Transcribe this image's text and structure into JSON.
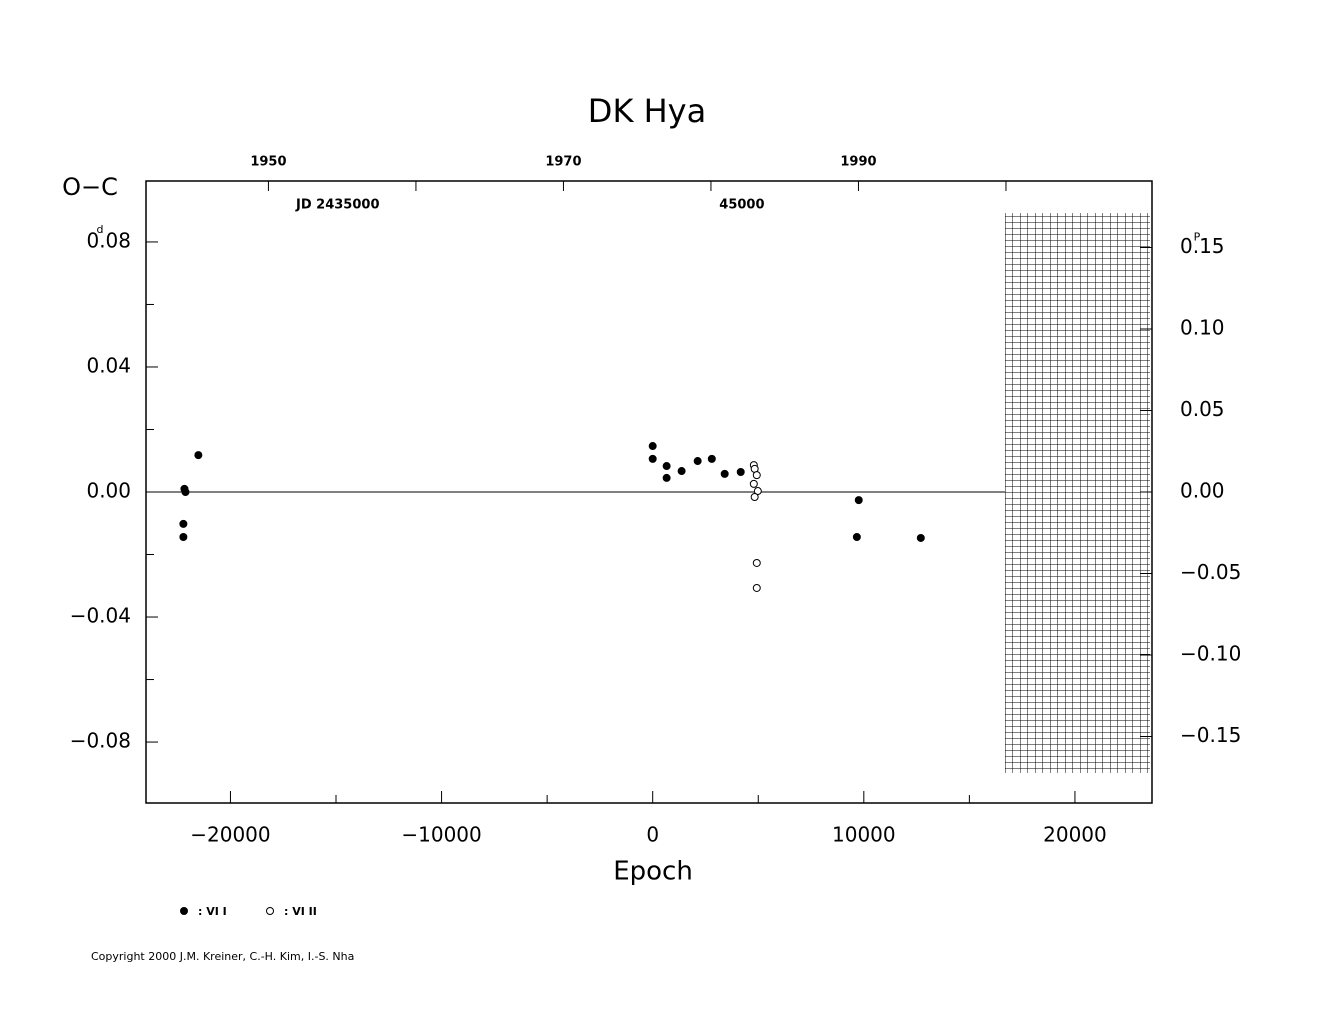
{
  "chart_data": {
    "type": "scatter",
    "title": "DK  Hya",
    "ylabel": "O−C",
    "xlabel": "Epoch",
    "y_unit": "d",
    "y2_unit": "P",
    "xlim": [
      -24000,
      23650
    ],
    "xticks": [
      {
        "value": -20000,
        "label": "−20000"
      },
      {
        "value": -10000,
        "label": "−10000"
      },
      0,
      10000,
      20000
    ],
    "xminor": [
      -15000,
      -5000,
      5000,
      15000
    ],
    "ylim": [
      -0.0995,
      0.0995
    ],
    "yticks": [
      0.08,
      0.04,
      {
        "value": 0,
        "label": "0.00"
      },
      {
        "value": -0.04,
        "label": "−0.04"
      },
      {
        "value": -0.08,
        "label": "−0.08"
      }
    ],
    "yminor": [
      0.06,
      0.02,
      -0.02,
      -0.06
    ],
    "y2lim": [
      -0.1908,
      0.1908
    ],
    "y2ticks": [
      0.15,
      {
        "value": 0.1,
        "label": "0.10"
      },
      0.05,
      {
        "value": 0,
        "label": "0.00"
      },
      {
        "value": -0.05,
        "label": "−0.05"
      },
      {
        "value": -0.1,
        "label": "−0.10"
      },
      {
        "value": -0.15,
        "label": "−0.15"
      }
    ],
    "x2lim": [
      1941.7,
      2009.9
    ],
    "x2ticks": [
      1950,
      1970,
      1990
    ],
    "x2minor": [
      1960,
      1980,
      2000
    ],
    "jd_ticks": [
      {
        "value": 1954.7,
        "label": "JD  2435000"
      },
      {
        "value": 1982.1,
        "label": "45000"
      }
    ],
    "zero_line": true,
    "series": [
      {
        "name": ": VI I",
        "color": "#000000",
        "filled": true,
        "x": [
          -22230,
          -22230,
          -22180,
          -22130,
          -21520,
          0,
          0,
          660,
          660,
          1370,
          2130,
          2800,
          3410,
          4170,
          9670,
          9760,
          12700
        ],
        "values": [
          -0.0102,
          -0.0144,
          0.001,
          0.0,
          0.0118,
          0.0147,
          0.0106,
          0.0083,
          0.0045,
          0.0067,
          0.0099,
          0.0106,
          0.0058,
          0.0064,
          -0.0144,
          -0.0026,
          -0.0147
        ]
      },
      {
        "name": ": VI II",
        "color": "#000000",
        "filled": false,
        "x": [
          4790,
          4830,
          4930,
          4790,
          4980,
          4830,
          4930,
          4930
        ],
        "values": [
          0.0086,
          0.0074,
          0.0054,
          0.0026,
          0.0003,
          -0.0016,
          -0.0227,
          -0.0307
        ]
      }
    ],
    "copyright": "Copyright 2000 J.M. Kreiner, C.-H. Kim, I.-S. Nha"
  }
}
